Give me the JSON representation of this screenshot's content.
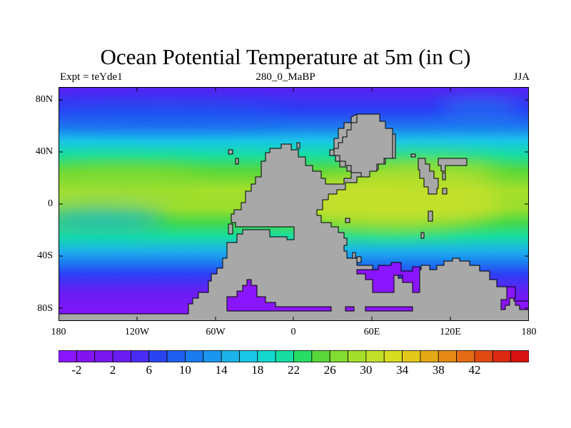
{
  "title": "Ocean Potential Temperature at 5m (in C)",
  "subtitle_left": "Expt = teYde1",
  "subtitle_center": "280_0_MaBP",
  "subtitle_right": "JJA",
  "y_ticks": [
    "80N",
    "40N",
    "0",
    "40S",
    "80S"
  ],
  "x_ticks": [
    "180",
    "120W",
    "60W",
    "0",
    "60E",
    "120E",
    "180"
  ],
  "colorbar": {
    "tick_labels": [
      "-2",
      "2",
      "6",
      "10",
      "14",
      "18",
      "22",
      "26",
      "30",
      "34",
      "38",
      "42"
    ],
    "colors": [
      "#8a16ff",
      "#8314ef",
      "#7a18f0",
      "#6a1cf2",
      "#4b2cf5",
      "#2a44f2",
      "#1f5ff0",
      "#1b7cf0",
      "#1a96ee",
      "#1cb2ea",
      "#19c8e8",
      "#15d8cc",
      "#17dda3",
      "#27dd66",
      "#5ad83a",
      "#82dc31",
      "#a4df2c",
      "#c2e02a",
      "#d7dd21",
      "#e2c919",
      "#e5a816",
      "#e78a15",
      "#e56b14",
      "#e04a12",
      "#dc2a12",
      "#d91212"
    ]
  },
  "colors": {
    "land": "#a8a8a8",
    "background": "#ffffff"
  }
}
